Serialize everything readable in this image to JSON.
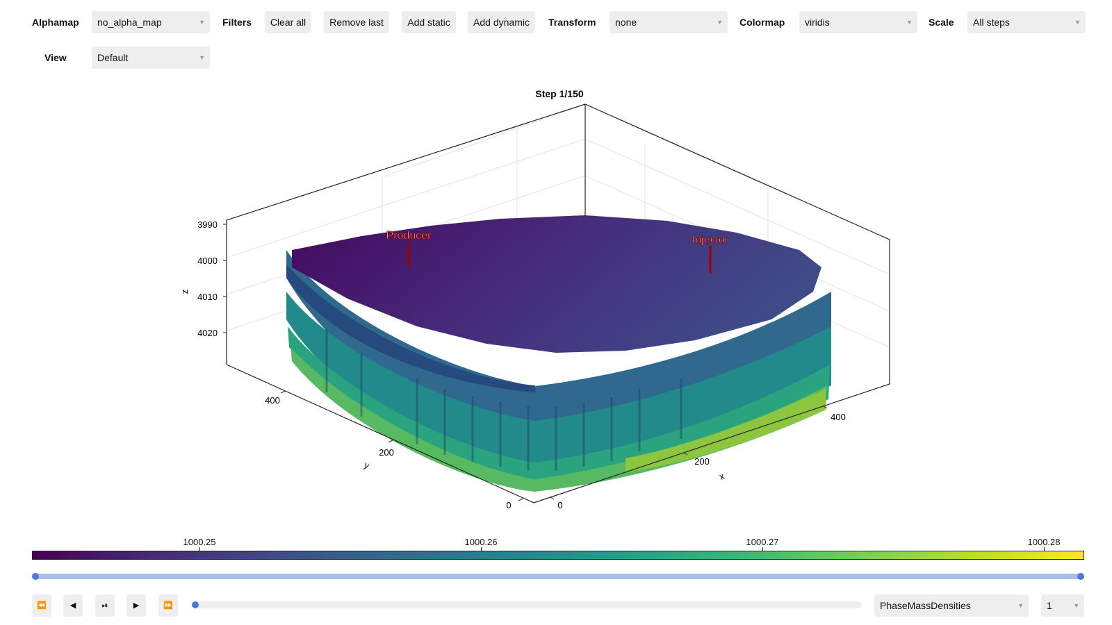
{
  "toolbar": {
    "alphamap": {
      "label": "Alphamap",
      "value": "no_alpha_map"
    },
    "filters": {
      "label": "Filters"
    },
    "buttons": {
      "clear_all": "Clear all",
      "remove_last": "Remove last",
      "add_static": "Add static",
      "add_dynamic": "Add dynamic"
    },
    "transform": {
      "label": "Transform",
      "value": "none"
    },
    "colormap": {
      "label": "Colormap",
      "value": "viridis"
    },
    "scale": {
      "label": "Scale",
      "value": "All steps"
    },
    "view": {
      "label": "View",
      "value": "Default"
    }
  },
  "plot": {
    "title": "Step 1/150",
    "axes": {
      "x": {
        "label": "x",
        "ticks": [
          "0",
          "200",
          "400"
        ]
      },
      "y": {
        "label": "y",
        "ticks": [
          "0",
          "200",
          "400"
        ]
      },
      "z": {
        "label": "z",
        "ticks": [
          "3990",
          "4000",
          "4010",
          "4020"
        ]
      }
    },
    "wells": {
      "producer": "Producer",
      "injector": "Injector"
    }
  },
  "colorbar": {
    "colormap": "viridis",
    "ticks": [
      "1000.25",
      "1000.26",
      "1000.27",
      "1000.28"
    ]
  },
  "playback": {
    "icons": {
      "first": "⏪",
      "back": "◀",
      "play_pause": "⏯",
      "forward": "▶",
      "last": "⏩"
    },
    "property": "PhaseMassDensities",
    "component": "1",
    "step": 1,
    "total_steps": 150,
    "range_start": 1,
    "range_end": 150
  },
  "colors": {
    "accent": "#4a7ad6",
    "well": "#a00000"
  }
}
